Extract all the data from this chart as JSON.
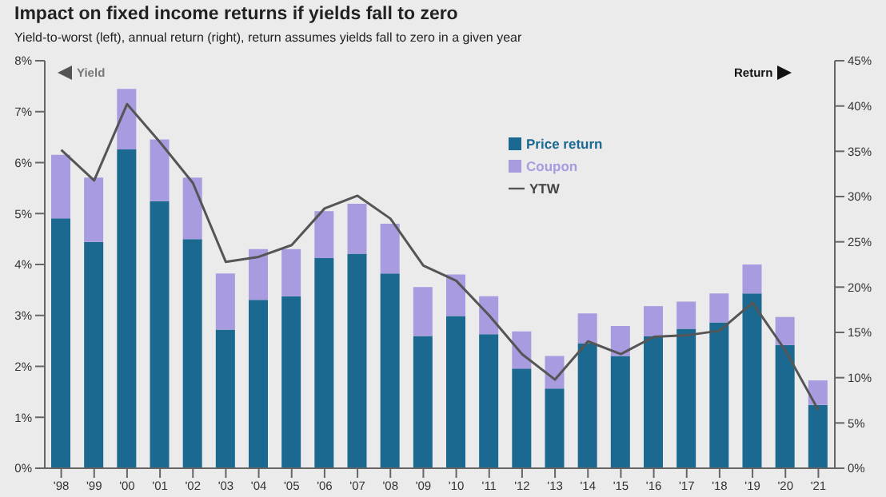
{
  "chart_data": {
    "type": "bar",
    "title": "Impact on fixed income returns if yields fall to zero",
    "subtitle": "Yield-to-worst (left), annual return (right), return assumes yields fall to zero in a given year",
    "categories": [
      "'98",
      "'99",
      "'00",
      "'01",
      "'02",
      "'03",
      "'04",
      "'05",
      "'06",
      "'07",
      "'08",
      "'09",
      "'10",
      "'11",
      "'12",
      "'13",
      "'14",
      "'15",
      "'16",
      "'17",
      "'18",
      "'19",
      "'20",
      "'21"
    ],
    "stacked": true,
    "series": [
      {
        "name": "Price return",
        "axis": "y2",
        "color": "#1b6990",
        "values": [
          27.6,
          25.0,
          35.2,
          29.5,
          25.3,
          15.3,
          18.6,
          19.0,
          23.2,
          23.7,
          21.5,
          14.6,
          16.8,
          14.8,
          11.0,
          8.8,
          13.8,
          12.4,
          14.6,
          15.4,
          16.1,
          19.3,
          13.6,
          7.0
        ]
      },
      {
        "name": "Coupon",
        "axis": "y2",
        "color": "#a99be0",
        "values": [
          7.0,
          7.1,
          6.7,
          6.8,
          6.8,
          6.2,
          5.6,
          5.2,
          5.2,
          5.5,
          5.5,
          5.4,
          4.6,
          4.2,
          4.1,
          3.6,
          3.3,
          3.3,
          3.3,
          3.0,
          3.2,
          3.2,
          3.1,
          2.7
        ]
      },
      {
        "name": "YTW",
        "type": "line",
        "axis": "y",
        "color": "#555555",
        "values": [
          6.25,
          5.65,
          7.15,
          6.4,
          5.6,
          4.05,
          4.15,
          4.38,
          5.1,
          5.35,
          4.9,
          3.98,
          3.68,
          3.0,
          2.24,
          1.74,
          2.49,
          2.24,
          2.58,
          2.61,
          2.7,
          3.25,
          2.31,
          1.14
        ]
      }
    ],
    "ylim": [
      0,
      8
    ],
    "yticks": [
      {
        "value": 0,
        "label": "0%"
      },
      {
        "value": 1,
        "label": "1%"
      },
      {
        "value": 2,
        "label": "2%"
      },
      {
        "value": 3,
        "label": "3%"
      },
      {
        "value": 4,
        "label": "4%"
      },
      {
        "value": 5,
        "label": "5%"
      },
      {
        "value": 6,
        "label": "6%"
      },
      {
        "value": 7,
        "label": "7%"
      },
      {
        "value": 8,
        "label": "8%"
      }
    ],
    "y2lim": [
      0,
      45
    ],
    "y2ticks": [
      {
        "value": 0,
        "label": "0%"
      },
      {
        "value": 5,
        "label": "5%"
      },
      {
        "value": 10,
        "label": "10%"
      },
      {
        "value": 15,
        "label": "15%"
      },
      {
        "value": 20,
        "label": "20%"
      },
      {
        "value": 25,
        "label": "25%"
      },
      {
        "value": 30,
        "label": "30%"
      },
      {
        "value": 35,
        "label": "35%"
      },
      {
        "value": 40,
        "label": "40%"
      },
      {
        "value": 45,
        "label": "45%"
      }
    ],
    "annotations": [
      "Yield",
      "Return"
    ],
    "legend": "top right",
    "grid": false,
    "marker": "none"
  }
}
